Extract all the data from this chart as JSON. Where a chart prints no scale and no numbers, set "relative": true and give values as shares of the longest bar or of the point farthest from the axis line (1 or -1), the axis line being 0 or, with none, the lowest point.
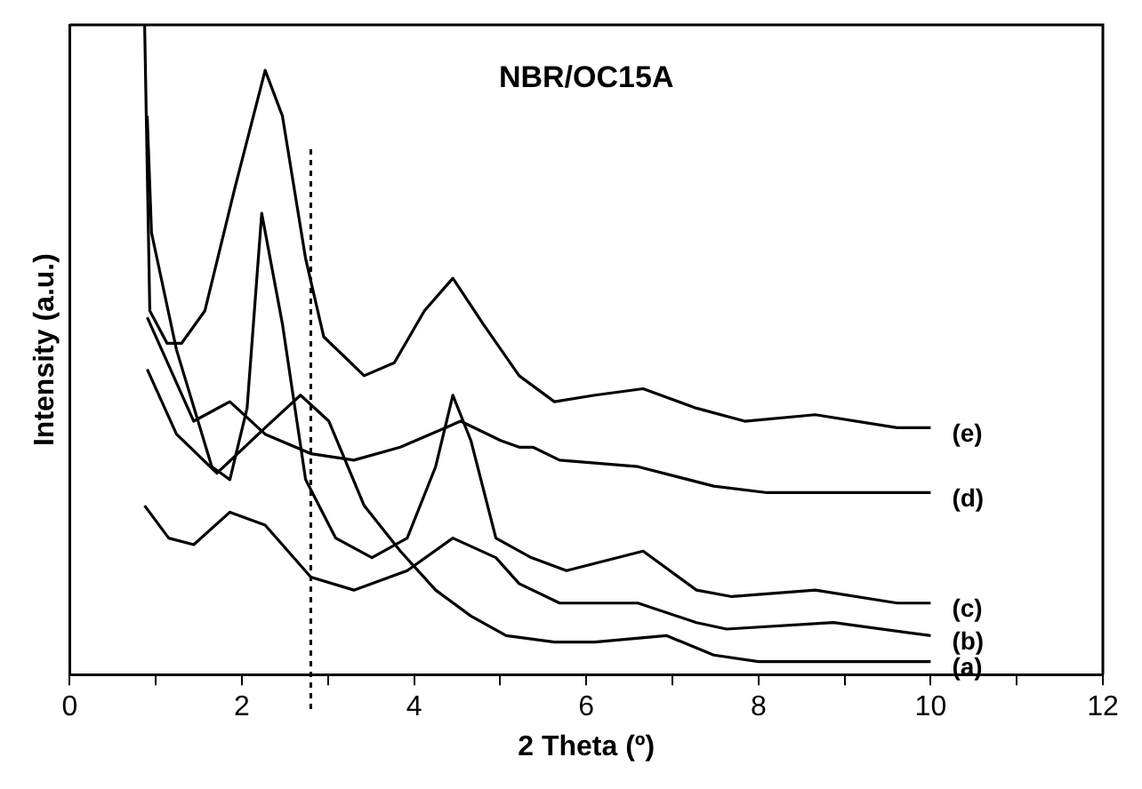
{
  "chart_data": {
    "type": "line",
    "title": "NBR/OC15A",
    "xlabel": "2 Theta (º)",
    "ylabel": "Intensity (a.u.)",
    "relative": true,
    "xlim": [
      0,
      12
    ],
    "xticks": [
      0,
      {
        "value": 1,
        "label": null
      },
      2,
      {
        "value": 3,
        "label": null
      },
      4,
      {
        "value": 5,
        "label": null
      },
      6,
      {
        "value": 7,
        "label": null
      },
      8,
      {
        "value": 9,
        "label": null
      },
      10,
      {
        "value": 11,
        "label": null
      },
      12
    ],
    "grid": false,
    "legend": false,
    "marker": "none",
    "line_style": "solid",
    "ref_lines": [
      {
        "axis": "x",
        "value": 2.8,
        "label": null,
        "line_style": "dotted",
        "color": "#000000"
      }
    ],
    "series": [
      {
        "name": "(a)",
        "color": "#000000",
        "x": [
          0.9,
          1.24,
          1.71,
          2.27,
          2.68,
          3.01,
          3.42,
          3.84,
          4.25,
          4.66,
          5.07,
          5.63,
          6.1,
          6.93,
          7.48,
          8.0,
          10.0
        ],
        "values": [
          0.47,
          0.37,
          0.31,
          0.38,
          0.43,
          0.39,
          0.26,
          0.19,
          0.13,
          0.09,
          0.06,
          0.05,
          0.05,
          0.06,
          0.03,
          0.02,
          0.02
        ]
      },
      {
        "name": "(b)",
        "color": "#000000",
        "x": [
          0.87,
          1.15,
          1.44,
          1.86,
          2.27,
          2.8,
          3.3,
          3.92,
          4.45,
          4.95,
          5.22,
          5.69,
          6.6,
          7.28,
          7.63,
          8.87,
          10.0
        ],
        "values": [
          0.26,
          0.21,
          0.2,
          0.25,
          0.23,
          0.15,
          0.13,
          0.16,
          0.21,
          0.18,
          0.14,
          0.11,
          0.11,
          0.08,
          0.07,
          0.08,
          0.06
        ]
      },
      {
        "name": "(c)",
        "color": "#000000",
        "x": [
          0.9,
          0.95,
          1.24,
          1.65,
          1.86,
          2.06,
          2.23,
          2.47,
          2.74,
          3.09,
          3.51,
          3.92,
          4.25,
          4.45,
          4.66,
          4.95,
          5.36,
          5.77,
          6.66,
          7.28,
          7.69,
          8.66,
          9.61,
          10.0
        ],
        "values": [
          0.86,
          0.68,
          0.5,
          0.32,
          0.3,
          0.41,
          0.71,
          0.54,
          0.3,
          0.21,
          0.18,
          0.21,
          0.32,
          0.43,
          0.36,
          0.21,
          0.18,
          0.16,
          0.19,
          0.13,
          0.12,
          0.13,
          0.11,
          0.11
        ]
      },
      {
        "name": "(d)",
        "color": "#000000",
        "x": [
          0.9,
          1.44,
          1.86,
          2.27,
          2.8,
          3.3,
          3.84,
          4.54,
          5.01,
          5.22,
          5.38,
          5.69,
          6.6,
          7.48,
          8.1,
          10.0
        ],
        "values": [
          0.55,
          0.39,
          0.42,
          0.37,
          0.34,
          0.33,
          0.35,
          0.39,
          0.36,
          0.35,
          0.35,
          0.33,
          0.32,
          0.29,
          0.28,
          0.28
        ]
      },
      {
        "name": "(e)",
        "color": "#000000",
        "x": [
          0.87,
          0.93,
          1.13,
          1.3,
          1.57,
          1.92,
          2.27,
          2.47,
          2.74,
          2.95,
          3.42,
          3.77,
          4.12,
          4.45,
          4.8,
          5.22,
          5.63,
          6.1,
          6.66,
          7.28,
          7.84,
          8.66,
          9.61,
          10.0
        ],
        "values": [
          1.0,
          0.56,
          0.51,
          0.51,
          0.56,
          0.75,
          0.93,
          0.86,
          0.64,
          0.52,
          0.46,
          0.48,
          0.56,
          0.61,
          0.54,
          0.46,
          0.42,
          0.43,
          0.44,
          0.41,
          0.39,
          0.4,
          0.38,
          0.38
        ]
      }
    ]
  }
}
